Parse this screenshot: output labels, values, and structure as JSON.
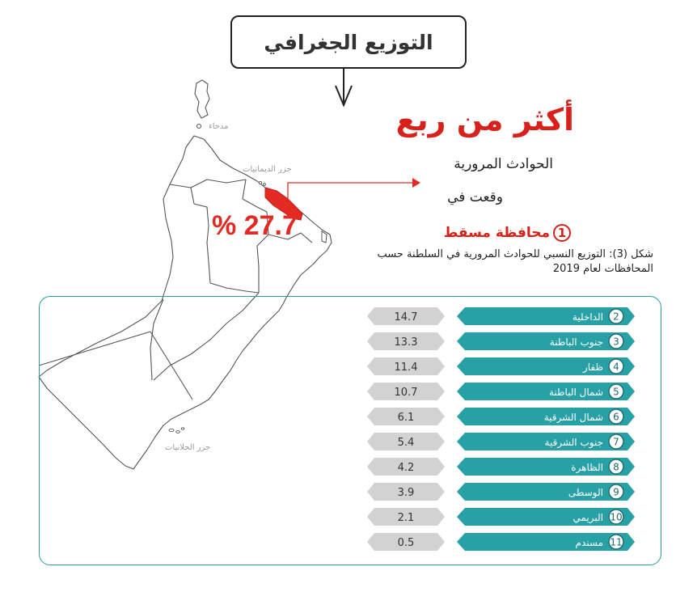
{
  "title": "التوزيع الجغرافي",
  "headline": "أكثر من ربع",
  "line2": "الحوادث المرورية",
  "line3": "وقعت في",
  "top_governorate": {
    "number": "1",
    "name": "محافظة مسقط"
  },
  "top_percent_label": "% 27.7",
  "caption": "شكل (3): التوزيع النسبي للحوادث المرورية في السلطنة حسب المحافظات لعام 2019",
  "map_labels": {
    "madha": "مدحاء",
    "daymaniyat": "جزر الديمانيات",
    "hallaniyat": "جزر الحلانيات"
  },
  "colors": {
    "accent_red": "#e32b24",
    "teal": "#28a1a6",
    "gray": "#d2d2d2",
    "map_stroke": "#555555"
  },
  "chart_data": {
    "type": "bar",
    "orientation": "horizontal",
    "categories": [
      "الداخلية",
      "جنوب الباطنة",
      "ظفار",
      "شمال الباطنة",
      "شمال الشرقية",
      "جنوب الشرقية",
      "الظاهرة",
      "الوسطى",
      "البريمي",
      "مسندم"
    ],
    "ranks": [
      "2",
      "3",
      "4",
      "5",
      "6",
      "7",
      "8",
      "9",
      "10",
      "11"
    ],
    "values": [
      14.7,
      13.3,
      11.4,
      10.7,
      6.1,
      5.4,
      4.2,
      3.9,
      2.1,
      0.5
    ],
    "value_labels": [
      "14.7",
      "13.3",
      "11.4",
      "10.7",
      "6.1",
      "5.4",
      "4.2",
      "3.9",
      "2.1",
      "0.5"
    ],
    "highlight": {
      "category": "محافظة مسقط",
      "value": 27.7
    }
  }
}
